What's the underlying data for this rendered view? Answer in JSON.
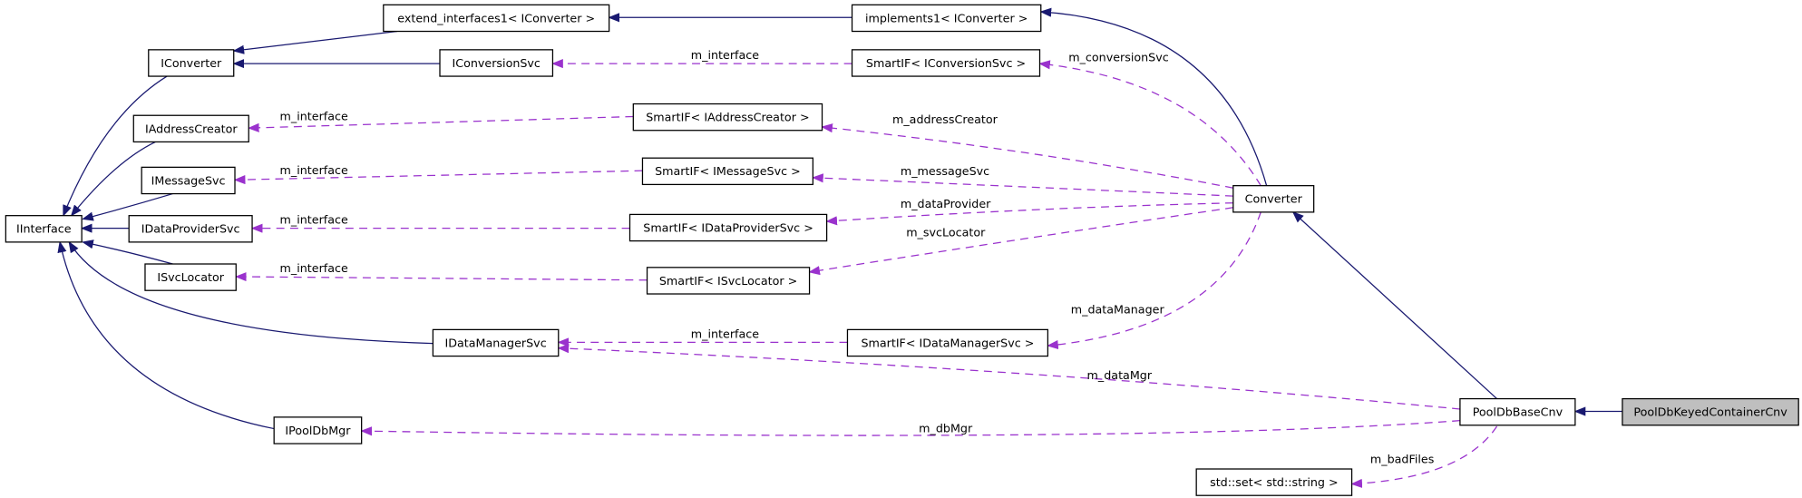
{
  "diagram": {
    "colors": {
      "inherit": "#191970",
      "usage": "#9a32cd",
      "highlight_fill": "#bfbfbf",
      "node_fill": "#ffffff"
    },
    "nodes": [
      {
        "id": "extend",
        "label": "extend_interfaces1< IConverter >"
      },
      {
        "id": "implements",
        "label": "implements1< IConverter >"
      },
      {
        "id": "IConverter",
        "label": "IConverter"
      },
      {
        "id": "IConversionSvc",
        "label": "IConversionSvc"
      },
      {
        "id": "SmartConv",
        "label": "SmartIF< IConversionSvc >"
      },
      {
        "id": "IAddressCreator",
        "label": "IAddressCreator"
      },
      {
        "id": "SmartAddr",
        "label": "SmartIF< IAddressCreator >"
      },
      {
        "id": "IMessageSvc",
        "label": "IMessageSvc"
      },
      {
        "id": "SmartMsg",
        "label": "SmartIF< IMessageSvc >"
      },
      {
        "id": "IInterface",
        "label": "IInterface"
      },
      {
        "id": "IDataProviderSvc",
        "label": "IDataProviderSvc"
      },
      {
        "id": "SmartDP",
        "label": "SmartIF< IDataProviderSvc >"
      },
      {
        "id": "ISvcLocator",
        "label": "ISvcLocator"
      },
      {
        "id": "SmartSvc",
        "label": "SmartIF< ISvcLocator >"
      },
      {
        "id": "Converter",
        "label": "Converter"
      },
      {
        "id": "IDataManagerSvc",
        "label": "IDataManagerSvc"
      },
      {
        "id": "SmartDM",
        "label": "SmartIF< IDataManagerSvc >"
      },
      {
        "id": "PoolDbBaseCnv",
        "label": "PoolDbBaseCnv"
      },
      {
        "id": "PoolDbKeyed",
        "label": "PoolDbKeyedContainerCnv",
        "highlighted": true
      },
      {
        "id": "IPoolDbMgr",
        "label": "IPoolDbMgr"
      },
      {
        "id": "stdset",
        "label": "std::set< std::string >"
      }
    ],
    "edges": [
      {
        "from": "extend",
        "to": "IConverter",
        "kind": "inherit",
        "label": ""
      },
      {
        "from": "implements",
        "to": "extend",
        "kind": "inherit",
        "label": ""
      },
      {
        "from": "IConversionSvc",
        "to": "IConverter",
        "kind": "inherit",
        "label": ""
      },
      {
        "from": "IConverter",
        "to": "IInterface",
        "kind": "inherit",
        "label": ""
      },
      {
        "from": "IAddressCreator",
        "to": "IInterface",
        "kind": "inherit",
        "label": ""
      },
      {
        "from": "IMessageSvc",
        "to": "IInterface",
        "kind": "inherit",
        "label": ""
      },
      {
        "from": "IDataProviderSvc",
        "to": "IInterface",
        "kind": "inherit",
        "label": ""
      },
      {
        "from": "ISvcLocator",
        "to": "IInterface",
        "kind": "inherit",
        "label": ""
      },
      {
        "from": "IDataManagerSvc",
        "to": "IInterface",
        "kind": "inherit",
        "label": ""
      },
      {
        "from": "IPoolDbMgr",
        "to": "IInterface",
        "kind": "inherit",
        "label": ""
      },
      {
        "from": "Converter",
        "to": "implements",
        "kind": "inherit",
        "label": ""
      },
      {
        "from": "PoolDbBaseCnv",
        "to": "Converter",
        "kind": "inherit",
        "label": ""
      },
      {
        "from": "PoolDbKeyed",
        "to": "PoolDbBaseCnv",
        "kind": "inherit",
        "label": ""
      },
      {
        "from": "SmartConv",
        "to": "IConversionSvc",
        "kind": "usage",
        "label": "m_interface"
      },
      {
        "from": "SmartAddr",
        "to": "IAddressCreator",
        "kind": "usage",
        "label": "m_interface"
      },
      {
        "from": "SmartMsg",
        "to": "IMessageSvc",
        "kind": "usage",
        "label": "m_interface"
      },
      {
        "from": "SmartDP",
        "to": "IDataProviderSvc",
        "kind": "usage",
        "label": "m_interface"
      },
      {
        "from": "SmartSvc",
        "to": "ISvcLocator",
        "kind": "usage",
        "label": "m_interface"
      },
      {
        "from": "SmartDM",
        "to": "IDataManagerSvc",
        "kind": "usage",
        "label": "m_interface"
      },
      {
        "from": "Converter",
        "to": "SmartConv",
        "kind": "usage",
        "label": "m_conversionSvc"
      },
      {
        "from": "Converter",
        "to": "SmartAddr",
        "kind": "usage",
        "label": "m_addressCreator"
      },
      {
        "from": "Converter",
        "to": "SmartMsg",
        "kind": "usage",
        "label": "m_messageSvc"
      },
      {
        "from": "Converter",
        "to": "SmartDP",
        "kind": "usage",
        "label": "m_dataProvider"
      },
      {
        "from": "Converter",
        "to": "SmartSvc",
        "kind": "usage",
        "label": "m_svcLocator"
      },
      {
        "from": "Converter",
        "to": "SmartDM",
        "kind": "usage",
        "label": "m_dataManager"
      },
      {
        "from": "PoolDbBaseCnv",
        "to": "IDataManagerSvc",
        "kind": "usage",
        "label": "m_dataMgr"
      },
      {
        "from": "PoolDbBaseCnv",
        "to": "IPoolDbMgr",
        "kind": "usage",
        "label": "m_dbMgr"
      },
      {
        "from": "PoolDbBaseCnv",
        "to": "stdset",
        "kind": "usage",
        "label": "m_badFiles"
      }
    ]
  }
}
